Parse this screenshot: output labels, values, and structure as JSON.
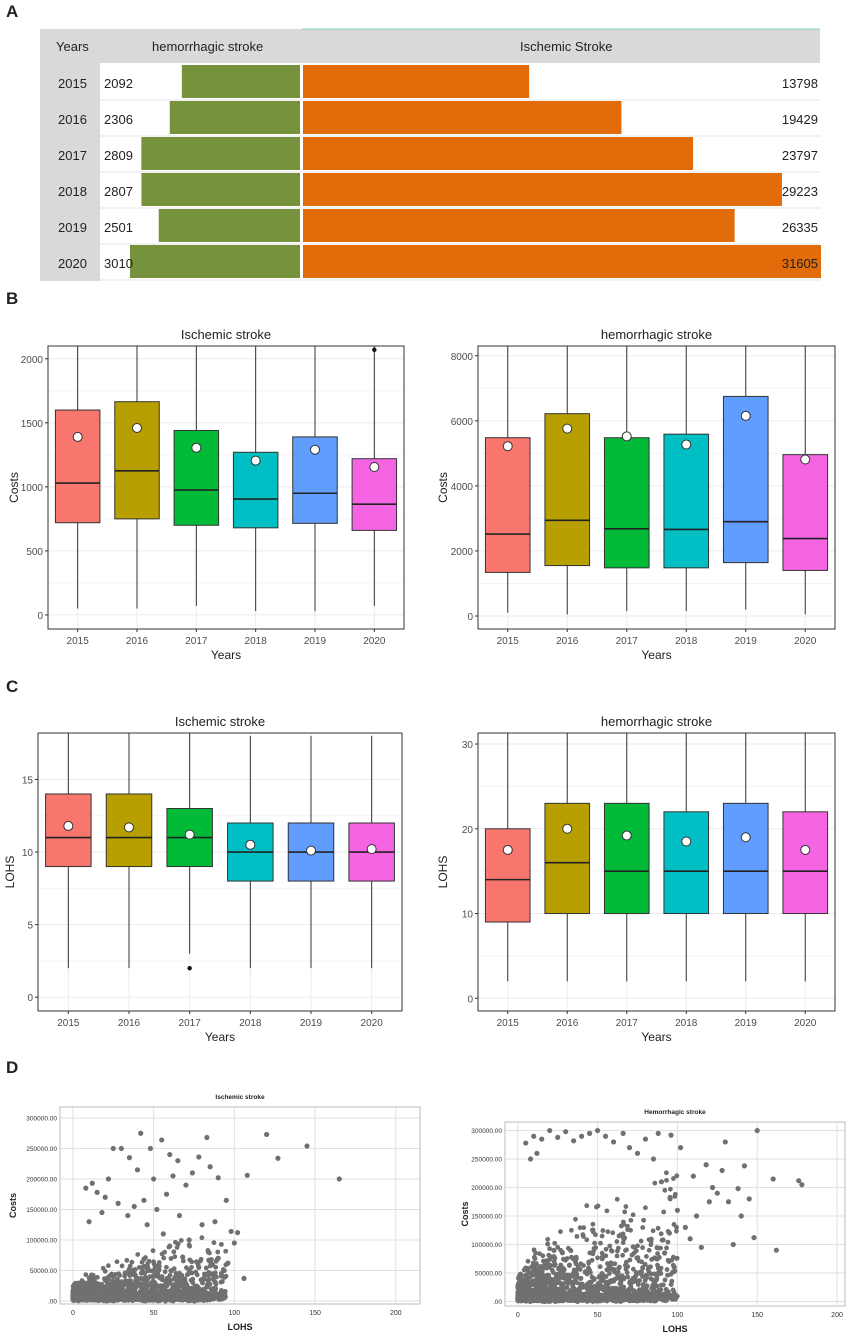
{
  "panels": {
    "a": "A",
    "b": "B",
    "c": "C",
    "d": "D"
  },
  "colors": {
    "hemorrhagic_bar": "#76923c",
    "ischemic_bar": "#e26b0a",
    "header_bg": "#d9d9d9",
    "box_2015": "#f8766d",
    "box_2016": "#b79f00",
    "box_2017": "#00ba38",
    "box_2018": "#00bfc4",
    "box_2019": "#619cff",
    "box_2020": "#f564e3",
    "scatter_point": "#707070"
  },
  "chart_data": [
    {
      "id": "A",
      "type": "bar",
      "title": "",
      "header": {
        "years": "Years",
        "hemorrhagic": "hemorrhagic stroke",
        "ischemic": "Ischemic Stroke"
      },
      "categories": [
        "2015",
        "2016",
        "2017",
        "2018",
        "2019",
        "2020"
      ],
      "series": [
        {
          "name": "hemorrhagic stroke",
          "values": [
            2092,
            2306,
            2809,
            2807,
            2501,
            3010
          ]
        },
        {
          "name": "Ischemic Stroke",
          "values": [
            13798,
            19429,
            23797,
            29223,
            26335,
            31605
          ]
        }
      ],
      "hemorrhagic_max": 3010,
      "ischemic_max": 31605
    },
    {
      "id": "B-ischemic",
      "type": "box",
      "title": "Ischemic stroke",
      "xlabel": "Years",
      "ylabel": "Costs",
      "ylim": [
        -110,
        2100
      ],
      "yticks": [
        0,
        500,
        1000,
        1500,
        2000
      ],
      "ytick_labels": [
        "0",
        "500",
        "1000",
        "1500",
        "2000"
      ],
      "categories": [
        "2015",
        "2016",
        "2017",
        "2018",
        "2019",
        "2020"
      ],
      "boxes": [
        {
          "whisker_low": 50,
          "q1": 720,
          "median": 1030,
          "q3": 1600,
          "whisker_high": 2100,
          "mean": 1390
        },
        {
          "whisker_low": 50,
          "q1": 750,
          "median": 1125,
          "q3": 1665,
          "whisker_high": 2100,
          "mean": 1460
        },
        {
          "whisker_low": 70,
          "q1": 700,
          "median": 975,
          "q3": 1440,
          "whisker_high": 2100,
          "mean": 1305
        },
        {
          "whisker_low": 30,
          "q1": 680,
          "median": 905,
          "q3": 1270,
          "whisker_high": 2100,
          "mean": 1205
        },
        {
          "whisker_low": 30,
          "q1": 715,
          "median": 950,
          "q3": 1390,
          "whisker_high": 2100,
          "mean": 1290
        },
        {
          "whisker_low": 70,
          "q1": 660,
          "median": 865,
          "q3": 1220,
          "whisker_high": 2100,
          "mean": 1155
        }
      ],
      "outliers": [
        {
          "category": "2020",
          "value": 2070
        }
      ]
    },
    {
      "id": "B-hemorrhagic",
      "type": "box",
      "title": "hemorrhagic stroke",
      "xlabel": "Years",
      "ylabel": "Costs",
      "ylim": [
        -400,
        8300
      ],
      "yticks": [
        0,
        2000,
        4000,
        6000,
        8000
      ],
      "ytick_labels": [
        "0",
        "2000",
        "4000",
        "6000",
        "8000"
      ],
      "categories": [
        "2015",
        "2016",
        "2017",
        "2018",
        "2019",
        "2020"
      ],
      "boxes": [
        {
          "whisker_low": 100,
          "q1": 1340,
          "median": 2520,
          "q3": 5480,
          "whisker_high": 8300,
          "mean": 5220
        },
        {
          "whisker_low": 50,
          "q1": 1550,
          "median": 2940,
          "q3": 6220,
          "whisker_high": 8300,
          "mean": 5760
        },
        {
          "whisker_low": 150,
          "q1": 1480,
          "median": 2680,
          "q3": 5480,
          "whisker_high": 8300,
          "mean": 5520
        },
        {
          "whisker_low": 150,
          "q1": 1480,
          "median": 2660,
          "q3": 5590,
          "whisker_high": 8300,
          "mean": 5270
        },
        {
          "whisker_low": 200,
          "q1": 1640,
          "median": 2900,
          "q3": 6750,
          "whisker_high": 8300,
          "mean": 6150
        },
        {
          "whisker_low": 50,
          "q1": 1400,
          "median": 2380,
          "q3": 4960,
          "whisker_high": 8300,
          "mean": 4810
        }
      ],
      "outliers": []
    },
    {
      "id": "C-ischemic",
      "type": "box",
      "title": "Ischemic stroke",
      "xlabel": "Years",
      "ylabel": "LOHS",
      "ylim": [
        -0.95,
        18.2
      ],
      "yticks": [
        0,
        5,
        10,
        15
      ],
      "ytick_labels": [
        "0",
        "5",
        "10",
        "15"
      ],
      "categories": [
        "2015",
        "2016",
        "2017",
        "2018",
        "2019",
        "2020"
      ],
      "boxes": [
        {
          "whisker_low": 2,
          "q1": 9,
          "median": 11,
          "q3": 14,
          "whisker_high": 18.2,
          "mean": 11.8
        },
        {
          "whisker_low": 2,
          "q1": 9,
          "median": 11,
          "q3": 14,
          "whisker_high": 18.2,
          "mean": 11.7
        },
        {
          "whisker_low": 3,
          "q1": 9,
          "median": 11,
          "q3": 13,
          "whisker_high": 18.2,
          "mean": 11.2
        },
        {
          "whisker_low": 2,
          "q1": 8,
          "median": 10,
          "q3": 12,
          "whisker_high": 18,
          "mean": 10.5
        },
        {
          "whisker_low": 2,
          "q1": 8,
          "median": 10,
          "q3": 12,
          "whisker_high": 18,
          "mean": 10.1
        },
        {
          "whisker_low": 2,
          "q1": 8,
          "median": 10,
          "q3": 12,
          "whisker_high": 18,
          "mean": 10.2
        }
      ],
      "outliers": [
        {
          "category": "2017",
          "value": 2
        }
      ]
    },
    {
      "id": "C-hemorrhagic",
      "type": "box",
      "title": "hemorrhagic stroke",
      "xlabel": "Years",
      "ylabel": "LOHS",
      "ylim": [
        -1.5,
        31.3
      ],
      "yticks": [
        0,
        10,
        20,
        30
      ],
      "ytick_labels": [
        "0",
        "10",
        "20",
        "30"
      ],
      "categories": [
        "2015",
        "2016",
        "2017",
        "2018",
        "2019",
        "2020"
      ],
      "boxes": [
        {
          "whisker_low": 2,
          "q1": 9,
          "median": 14,
          "q3": 20,
          "whisker_high": 31.3,
          "mean": 17.5
        },
        {
          "whisker_low": 2,
          "q1": 10,
          "median": 16,
          "q3": 23,
          "whisker_high": 31.3,
          "mean": 20
        },
        {
          "whisker_low": 2,
          "q1": 10,
          "median": 15,
          "q3": 23,
          "whisker_high": 31.3,
          "mean": 19.2
        },
        {
          "whisker_low": 2,
          "q1": 10,
          "median": 15,
          "q3": 22,
          "whisker_high": 31.3,
          "mean": 18.5
        },
        {
          "whisker_low": 2,
          "q1": 10,
          "median": 15,
          "q3": 23,
          "whisker_high": 31.3,
          "mean": 19
        },
        {
          "whisker_low": 2,
          "q1": 10,
          "median": 15,
          "q3": 22,
          "whisker_high": 31.3,
          "mean": 17.5
        }
      ],
      "outliers": []
    },
    {
      "id": "D-ischemic",
      "type": "scatter",
      "title": "Ischemic stroke",
      "xlabel": "LOHS",
      "ylabel": "Costs",
      "xlim": [
        -8,
        215
      ],
      "ylim": [
        -5000,
        318000
      ],
      "xticks": [
        0,
        50,
        100,
        150,
        200
      ],
      "xtick_labels": [
        "0",
        "50",
        "100",
        "150",
        "200"
      ],
      "yticks": [
        0,
        50000,
        100000,
        150000,
        200000,
        250000,
        300000
      ],
      "ytick_labels": [
        ".00",
        "50000.00",
        "100000.00",
        "150000.00",
        "200000.00",
        "250000.00",
        "300000.00"
      ],
      "points": [
        [
          42,
          275000
        ],
        [
          120,
          273000
        ],
        [
          145,
          254000
        ],
        [
          165,
          200000
        ],
        [
          108,
          206000
        ],
        [
          127,
          234000
        ],
        [
          83,
          268000
        ],
        [
          55,
          264000
        ],
        [
          25,
          250000
        ],
        [
          30,
          250000
        ],
        [
          35,
          235000
        ],
        [
          48,
          250000
        ],
        [
          60,
          240000
        ],
        [
          65,
          230000
        ],
        [
          78,
          236000
        ],
        [
          85,
          220000
        ],
        [
          90,
          202000
        ],
        [
          102,
          112000
        ],
        [
          98,
          114000
        ],
        [
          106,
          37000
        ],
        [
          92,
          45000
        ],
        [
          12,
          193000
        ],
        [
          8,
          185000
        ],
        [
          15,
          178000
        ],
        [
          20,
          170000
        ],
        [
          22,
          200000
        ],
        [
          40,
          215000
        ],
        [
          50,
          200000
        ],
        [
          62,
          205000
        ],
        [
          70,
          190000
        ],
        [
          74,
          210000
        ],
        [
          58,
          175000
        ],
        [
          44,
          165000
        ],
        [
          38,
          155000
        ],
        [
          52,
          150000
        ],
        [
          66,
          140000
        ],
        [
          80,
          125000
        ],
        [
          88,
          130000
        ],
        [
          95,
          165000
        ],
        [
          100,
          95000
        ],
        [
          72,
          100000
        ],
        [
          84,
          80000
        ],
        [
          90,
          70000
        ],
        [
          96,
          62000
        ],
        [
          78,
          55000
        ],
        [
          68,
          72000
        ],
        [
          60,
          90000
        ],
        [
          56,
          110000
        ],
        [
          46,
          125000
        ],
        [
          34,
          140000
        ],
        [
          28,
          160000
        ],
        [
          18,
          145000
        ],
        [
          10,
          130000
        ]
      ],
      "cluster": {
        "x_max": 95,
        "y_max": 125000
      }
    },
    {
      "id": "D-hemorrhagic",
      "type": "scatter",
      "title": "Hemorrhagic stroke",
      "xlabel": "LOHS",
      "ylabel": "Costs",
      "xlim": [
        -8,
        205
      ],
      "ylim": [
        -8000,
        315000
      ],
      "xticks": [
        0,
        50,
        100,
        150,
        200
      ],
      "xtick_labels": [
        "0",
        "50",
        "100",
        "150",
        "200"
      ],
      "yticks": [
        0,
        50000,
        100000,
        150000,
        200000,
        250000,
        300000
      ],
      "ytick_labels": [
        ".00",
        "50000.00",
        "100000.00",
        "150000.00",
        "200000.00",
        "250000.00",
        "300000.00"
      ],
      "points": [
        [
          150,
          300000
        ],
        [
          176,
          212000
        ],
        [
          178,
          205000
        ],
        [
          160,
          215000
        ],
        [
          162,
          90000
        ],
        [
          148,
          112000
        ],
        [
          140,
          150000
        ],
        [
          138,
          198000
        ],
        [
          142,
          238000
        ],
        [
          130,
          280000
        ],
        [
          125,
          190000
        ],
        [
          120,
          175000
        ],
        [
          118,
          240000
        ],
        [
          115,
          95000
        ],
        [
          110,
          220000
        ],
        [
          105,
          130000
        ],
        [
          100,
          160000
        ],
        [
          102,
          270000
        ],
        [
          96,
          292000
        ],
        [
          88,
          295000
        ],
        [
          80,
          285000
        ],
        [
          75,
          260000
        ],
        [
          70,
          270000
        ],
        [
          66,
          295000
        ],
        [
          60,
          280000
        ],
        [
          55,
          290000
        ],
        [
          50,
          300000
        ],
        [
          45,
          295000
        ],
        [
          40,
          290000
        ],
        [
          35,
          282000
        ],
        [
          30,
          298000
        ],
        [
          25,
          288000
        ],
        [
          20,
          300000
        ],
        [
          15,
          285000
        ],
        [
          10,
          290000
        ],
        [
          5,
          278000
        ],
        [
          8,
          250000
        ],
        [
          12,
          260000
        ],
        [
          95,
          120000
        ],
        [
          90,
          210000
        ],
        [
          85,
          250000
        ],
        [
          108,
          110000
        ],
        [
          112,
          150000
        ],
        [
          122,
          200000
        ],
        [
          132,
          175000
        ],
        [
          145,
          180000
        ],
        [
          128,
          230000
        ],
        [
          135,
          100000
        ],
        [
          92,
          85000
        ],
        [
          98,
          60000
        ]
      ],
      "cluster": {
        "x_max": 100,
        "y_max": 260000
      }
    }
  ]
}
